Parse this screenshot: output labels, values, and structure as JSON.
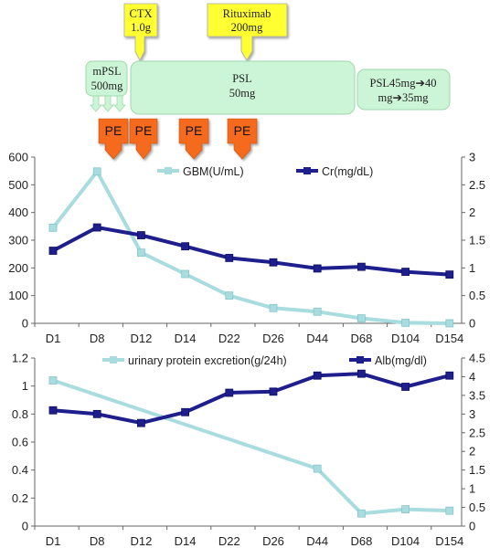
{
  "treatment": {
    "cyclophosphamide": {
      "lines": [
        "CTX",
        "1.0g"
      ],
      "color": "#ffff33"
    },
    "rituximab": {
      "lines": [
        "Rituximab",
        "200mg"
      ],
      "color": "#ffff33"
    },
    "mpsl": {
      "lines": [
        "mPSL",
        "500mg"
      ],
      "color": "#ccf5d7"
    },
    "psl": {
      "lines": [
        "PSL",
        "50mg"
      ],
      "color": "#ccf5d7"
    },
    "psl_taper": {
      "lines": [
        "PSL45mg➔40",
        "mg➔35mg"
      ],
      "color": "#ccf5d7"
    },
    "pe_label": "PE",
    "pe_count": 4,
    "pe_color": "#f56b1c"
  },
  "chart_data": [
    {
      "type": "line",
      "categories": [
        "D1",
        "D8",
        "D12",
        "D14",
        "D22",
        "D26",
        "D44",
        "D68",
        "D104",
        "D154"
      ],
      "series": [
        {
          "name": "GBM(U/mL)",
          "axis": "left",
          "color": "#a8dcdf",
          "values": [
            345,
            548,
            255,
            178,
            100,
            55,
            42,
            18,
            2,
            0
          ]
        },
        {
          "name": "Cr(mg/dL)",
          "axis": "right",
          "color": "#1e1e8c",
          "values": [
            1.31,
            1.73,
            1.59,
            1.39,
            1.18,
            1.1,
            0.99,
            1.02,
            0.93,
            0.88
          ]
        }
      ],
      "left_ticks": [
        "0",
        "100",
        "200",
        "300",
        "400",
        "500",
        "600"
      ],
      "right_ticks": [
        "0",
        "0.5",
        "1",
        "1.5",
        "2",
        "2.5",
        "3"
      ],
      "ylim_left": [
        0,
        600
      ],
      "ylim_right": [
        0,
        3
      ],
      "legend": "top-center"
    },
    {
      "type": "line",
      "categories": [
        "D1",
        "D8",
        "D12",
        "D14",
        "D22",
        "D26",
        "D44",
        "D68",
        "D104",
        "D154"
      ],
      "series": [
        {
          "name": "urinary protein excretion(g/24h)",
          "axis": "left",
          "color": "#a8dcdf",
          "values": [
            1.04,
            null,
            null,
            null,
            null,
            null,
            0.41,
            0.09,
            0.12,
            0.11
          ]
        },
        {
          "name": "Alb(mg/dl)",
          "axis": "right",
          "color": "#1e1e8c",
          "values": [
            3.1,
            3.0,
            2.76,
            3.05,
            3.57,
            3.6,
            4.03,
            4.08,
            3.73,
            4.03
          ]
        }
      ],
      "left_ticks": [
        "0",
        "0.2",
        "0.4",
        "0.6",
        "0.8",
        "1",
        "1.2"
      ],
      "right_ticks": [
        "0",
        "0.5",
        "1",
        "1.5",
        "2",
        "2.5",
        "3",
        "3.5",
        "4",
        "4.5"
      ],
      "ylim_left": [
        0,
        1.2
      ],
      "ylim_right": [
        0,
        4.5
      ],
      "legend": "top-center"
    }
  ]
}
